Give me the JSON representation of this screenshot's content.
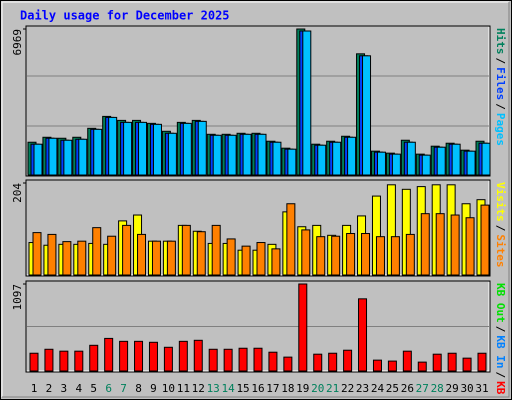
{
  "title": "Daily usage for December 2025",
  "x_labels": {
    "categories": [
      "1",
      "2",
      "3",
      "4",
      "5",
      "6",
      "7",
      "8",
      "9",
      "10",
      "11",
      "12",
      "13",
      "14",
      "15",
      "16",
      "17",
      "18",
      "19",
      "20",
      "21",
      "22",
      "23",
      "24",
      "25",
      "26",
      "27",
      "28",
      "29",
      "30",
      "31"
    ],
    "colors": [
      "#000000",
      "#000000",
      "#000000",
      "#000000",
      "#000000",
      "#00805c",
      "#00805c",
      "#000000",
      "#000000",
      "#000000",
      "#000000",
      "#000000",
      "#00805c",
      "#00805c",
      "#000000",
      "#000000",
      "#000000",
      "#000000",
      "#000000",
      "#00805c",
      "#00805c",
      "#000000",
      "#000000",
      "#000000",
      "#000000",
      "#000000",
      "#00805c",
      "#00805c",
      "#000000",
      "#000000",
      "#000000"
    ]
  },
  "chart_data": [
    {
      "type": "bar",
      "ylim": [
        0,
        6969
      ],
      "yticks": [
        6969
      ],
      "legend_separator": "/",
      "series": [
        {
          "name": "Hits",
          "color": "#00805c",
          "values": [
            1564,
            1801,
            1754,
            1801,
            2228,
            2797,
            2607,
            2607,
            2465,
            2086,
            2512,
            2607,
            1943,
            1943,
            1991,
            1991,
            1612,
            1280,
            6969,
            1470,
            1612,
            1849,
            5784,
            1138,
            1043,
            1659,
            996,
            1375,
            1517,
            1185,
            1612
          ]
        },
        {
          "name": "Files",
          "color": "#0040ff",
          "values": [
            1470,
            1754,
            1659,
            1706,
            2180,
            2749,
            2512,
            2512,
            2418,
            1991,
            2465,
            2560,
            1896,
            1896,
            1943,
            1943,
            1564,
            1233,
            6873,
            1422,
            1564,
            1801,
            5689,
            1090,
            996,
            1564,
            948,
            1327,
            1470,
            1138,
            1517
          ]
        },
        {
          "name": "Pages",
          "color": "#00c0ff",
          "values": [
            1470,
            1754,
            1659,
            1706,
            2180,
            2749,
            2512,
            2512,
            2418,
            1991,
            2465,
            2560,
            1896,
            1896,
            1943,
            1943,
            1564,
            1233,
            6873,
            1422,
            1564,
            1801,
            5689,
            1090,
            996,
            1564,
            948,
            1327,
            1470,
            1138,
            1517
          ]
        }
      ]
    },
    {
      "type": "bar",
      "ylim": [
        0,
        204
      ],
      "yticks": [
        204
      ],
      "legend_separator": "/",
      "series": [
        {
          "name": "Visits",
          "color": "#ffff00",
          "values": [
            72,
            66,
            68,
            68,
            70,
            68,
            120,
            133,
            75,
            75,
            110,
            97,
            70,
            70,
            55,
            55,
            68,
            140,
            107,
            110,
            88,
            110,
            131,
            175,
            200,
            190,
            196,
            200,
            200,
            158,
            167
          ]
        },
        {
          "name": "Sites",
          "color": "#ff8000",
          "values": [
            94,
            90,
            74,
            75,
            105,
            86,
            110,
            90,
            75,
            75,
            110,
            96,
            110,
            80,
            64,
            72,
            58,
            158,
            100,
            85,
            86,
            92,
            92,
            85,
            85,
            90,
            136,
            136,
            133,
            127,
            155
          ]
        }
      ]
    },
    {
      "type": "bar",
      "ylim": [
        0,
        1097
      ],
      "yticks": [
        1097
      ],
      "legend_separator": "/",
      "series": [
        {
          "name": "KB Out",
          "color": "#00e000"
        },
        {
          "name": "KB In",
          "color": "#0080ff"
        },
        {
          "name": "KB F",
          "color": "#ff0000",
          "values": [
            224,
            274,
            250,
            250,
            324,
            411,
            374,
            374,
            362,
            299,
            374,
            387,
            274,
            274,
            287,
            287,
            237,
            175,
            1097,
            212,
            224,
            262,
            910,
            137,
            125,
            250,
            112,
            212,
            224,
            162,
            224
          ]
        }
      ]
    }
  ]
}
